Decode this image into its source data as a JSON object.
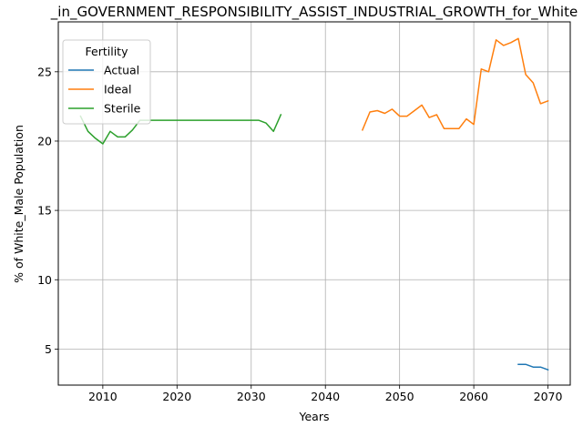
{
  "chart_data": {
    "type": "line",
    "title": "_in_GOVERNMENT_RESPONSIBILITY_ASSIST_INDUSTRIAL_GROWTH_for_White",
    "xlabel": "Years",
    "ylabel": "% of White_Male Population",
    "xlim": [
      2004,
      2073
    ],
    "ylim": [
      2.4,
      28.6
    ],
    "xticks": [
      2010,
      2020,
      2030,
      2040,
      2050,
      2060,
      2070
    ],
    "yticks": [
      5,
      10,
      15,
      20,
      25
    ],
    "grid": true,
    "legend": {
      "title": "Fertility",
      "placement": "upper left"
    },
    "series": [
      {
        "name": "Actual",
        "color": "#1f77b4",
        "x": [
          2066,
          2067,
          2068,
          2069,
          2070
        ],
        "y": [
          3.9,
          3.9,
          3.7,
          3.7,
          3.5
        ]
      },
      {
        "name": "Ideal",
        "color": "#ff7f0e",
        "x": [
          2045,
          2046,
          2047,
          2048,
          2049,
          2050,
          2051,
          2052,
          2053,
          2054,
          2055,
          2056,
          2057,
          2058,
          2059,
          2060,
          2061,
          2062,
          2063,
          2064,
          2065,
          2066,
          2067,
          2068,
          2069,
          2070
        ],
        "y": [
          20.8,
          22.1,
          22.2,
          22.0,
          22.3,
          21.8,
          21.8,
          22.2,
          22.6,
          21.7,
          21.9,
          20.9,
          20.9,
          20.9,
          21.6,
          21.2,
          25.2,
          25.0,
          27.3,
          26.9,
          27.1,
          27.4,
          24.8,
          24.2,
          22.7,
          22.9
        ]
      },
      {
        "name": "Sterile",
        "color": "#2ca02c",
        "x": [
          2007,
          2008,
          2009,
          2010,
          2011,
          2012,
          2013,
          2014,
          2015,
          2016,
          2017,
          2018,
          2019,
          2020,
          2021,
          2022,
          2023,
          2024,
          2025,
          2026,
          2027,
          2028,
          2029,
          2030,
          2031,
          2032,
          2033,
          2034
        ],
        "y": [
          21.8,
          20.7,
          20.2,
          19.8,
          20.7,
          20.3,
          20.3,
          20.8,
          21.5,
          21.5,
          21.5,
          21.5,
          21.5,
          21.5,
          21.5,
          21.5,
          21.5,
          21.5,
          21.5,
          21.5,
          21.5,
          21.5,
          21.5,
          21.5,
          21.5,
          21.3,
          20.7,
          21.9
        ]
      }
    ]
  }
}
